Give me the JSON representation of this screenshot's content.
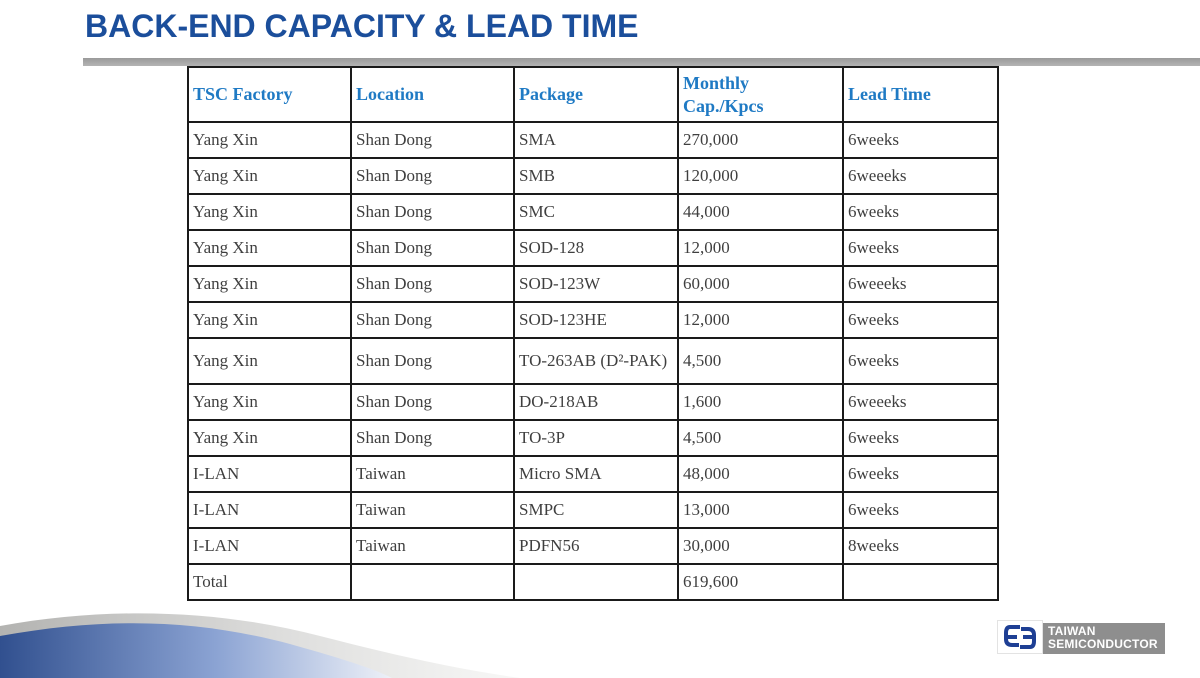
{
  "title": "BACK-END CAPACITY & LEAD TIME",
  "table": {
    "columns": [
      "TSC Factory",
      "Location",
      "Package",
      "Monthly\nCap./Kpcs",
      "Lead Time"
    ],
    "rows": [
      [
        "Yang Xin",
        "Shan Dong",
        "SMA",
        "270,000",
        "6weeks"
      ],
      [
        "Yang Xin",
        "Shan Dong",
        "SMB",
        "120,000",
        "6weeeks"
      ],
      [
        "Yang Xin",
        "Shan Dong",
        "SMC",
        "44,000",
        "6weeks"
      ],
      [
        "Yang Xin",
        "Shan Dong",
        "SOD-128",
        "12,000",
        "6weeks"
      ],
      [
        "Yang Xin",
        "Shan Dong",
        "SOD-123W",
        "60,000",
        "6weeeks"
      ],
      [
        "Yang Xin",
        "Shan Dong",
        "SOD-123HE",
        "12,000",
        "6weeks"
      ],
      [
        "Yang Xin",
        "Shan Dong",
        "TO-263AB (D²-PAK)",
        "4,500",
        "6weeks"
      ],
      [
        "Yang Xin",
        "Shan Dong",
        "DO-218AB",
        "1,600",
        "6weeeks"
      ],
      [
        "Yang Xin",
        "Shan Dong",
        "TO-3P",
        "4,500",
        "6weeks"
      ],
      [
        "I-LAN",
        "Taiwan",
        "Micro SMA",
        "48,000",
        "6weeks"
      ],
      [
        "I-LAN",
        "Taiwan",
        "SMPC",
        "13,000",
        "6weeks"
      ],
      [
        "I-LAN",
        "Taiwan",
        "PDFN56",
        "30,000",
        "8weeks"
      ],
      [
        "Total",
        "",
        "",
        "619,600",
        ""
      ]
    ]
  },
  "logo": {
    "name1": "TAIWAN",
    "name2": "SEMICONDUCTOR"
  },
  "colors": {
    "title": "#1b4e9b",
    "header_text": "#1f7ac4",
    "body_text": "#3f3f3f",
    "table_border": "#1a1a1a",
    "rule_gray": "#a6a6a6",
    "logo_blue": "#1e3f94",
    "logo_gray": "#8e8e8e",
    "swoosh_dark": "#31508f",
    "swoosh_light": "#8ba3d3",
    "silver": "#c9c9c7"
  }
}
